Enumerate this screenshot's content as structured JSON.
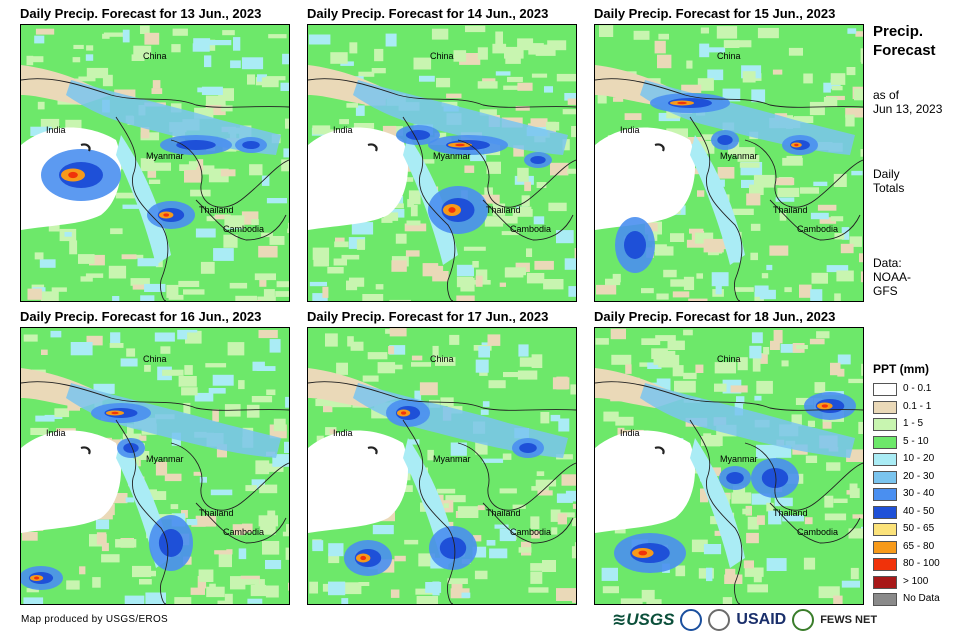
{
  "panels": [
    {
      "title": "Daily Precip. Forecast for 13 Jun., 2023"
    },
    {
      "title": "Daily Precip. Forecast for 14 Jun., 2023"
    },
    {
      "title": "Daily Precip. Forecast for 15 Jun., 2023"
    },
    {
      "title": "Daily Precip. Forecast for 16 Jun., 2023"
    },
    {
      "title": "Daily Precip. Forecast for 17 Jun., 2023"
    },
    {
      "title": "Daily Precip. Forecast for 18 Jun., 2023"
    }
  ],
  "map_labels": {
    "china": "China",
    "india": "India",
    "myanmar": "Myanmar",
    "thailand": "Thailand",
    "cambodia": "Cambodia"
  },
  "side": {
    "title_line1": "Precip.",
    "title_line2": "Forecast",
    "asof_line1": "as of",
    "asof_line2": "Jun 13, 2023",
    "daily_line1": "Daily",
    "daily_line2": "Totals",
    "data_line1": "Data:",
    "data_line2": "NOAA-",
    "data_line3": "GFS"
  },
  "legend": {
    "title": "PPT (mm)",
    "items": [
      {
        "label": "0 - 0.1",
        "color": "#ffffff"
      },
      {
        "label": "0.1 - 1",
        "color": "#ead9b8"
      },
      {
        "label": "1 - 5",
        "color": "#c8f5b0"
      },
      {
        "label": "5 - 10",
        "color": "#6de86a"
      },
      {
        "label": "10 - 20",
        "color": "#aaecf5"
      },
      {
        "label": "20 - 30",
        "color": "#7ac4ee"
      },
      {
        "label": "30 - 40",
        "color": "#4a8ff0"
      },
      {
        "label": "40 - 50",
        "color": "#1e50d8"
      },
      {
        "label": "50 - 65",
        "color": "#fbe27a"
      },
      {
        "label": "65 - 80",
        "color": "#f79a1a"
      },
      {
        "label": "80 - 100",
        "color": "#f0320a"
      },
      {
        "label": "> 100",
        "color": "#a81818"
      },
      {
        "label": "No Data",
        "color": "#8a8a8a"
      }
    ]
  },
  "footer": {
    "credit": "Map produced by USGS/EROS",
    "logo_usgs": "≋USGS",
    "logo_usaid": "USAID",
    "logo_fews": "FEWS NET"
  }
}
